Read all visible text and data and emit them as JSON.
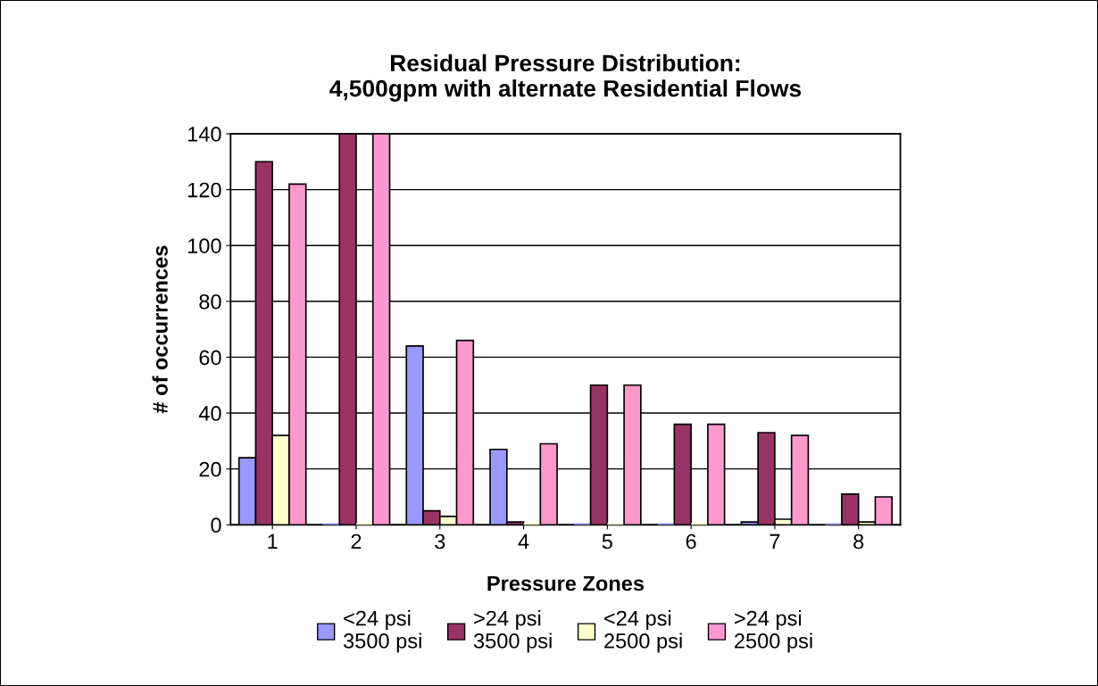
{
  "chart_data": {
    "type": "bar",
    "title": "Residual Pressure Distribution:\n4,500gpm with alternate Residential Flows",
    "xlabel": "Pressure Zones",
    "ylabel": "# of occurrences",
    "categories": [
      "1",
      "2",
      "3",
      "4",
      "5",
      "6",
      "7",
      "8"
    ],
    "series": [
      {
        "name": "<24 psi\n3500 psi",
        "color": "#9999ff",
        "values": [
          24,
          0,
          64,
          27,
          0,
          0,
          1,
          0
        ]
      },
      {
        "name": ">24 psi\n3500 psi",
        "color": "#993366",
        "values": [
          130,
          140,
          5,
          1,
          50,
          36,
          33,
          11
        ]
      },
      {
        "name": "<24 psi\n2500 psi",
        "color": "#ffffcc",
        "values": [
          32,
          0,
          3,
          0,
          0,
          0,
          2,
          1
        ]
      },
      {
        "name": ">24 psi\n2500 psi",
        "color": "#ff99cc",
        "values": [
          122,
          140,
          66,
          29,
          50,
          36,
          32,
          10
        ]
      }
    ],
    "ylim": [
      0,
      140
    ],
    "yticks": [
      0,
      20,
      40,
      60,
      80,
      100,
      120,
      140
    ],
    "grid": "y",
    "legend": "bottom"
  }
}
